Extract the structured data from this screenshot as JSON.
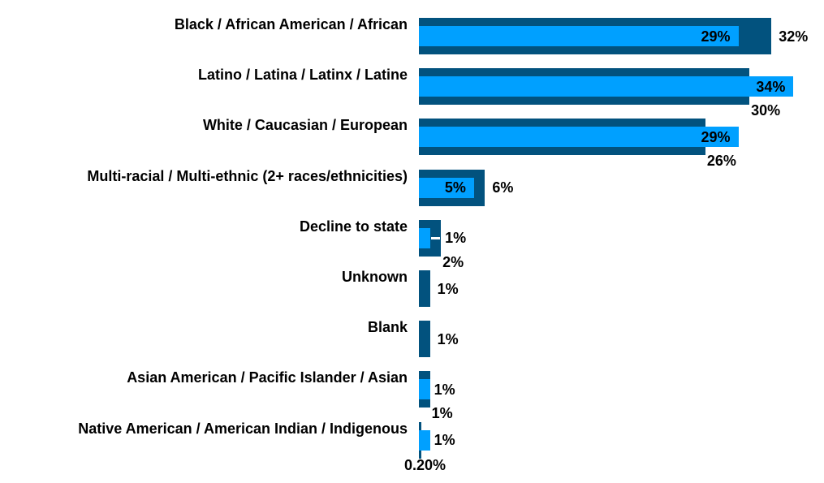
{
  "chart_data": {
    "type": "bar",
    "orientation": "horizontal",
    "title": "",
    "xlabel": "",
    "ylabel": "",
    "value_unit": "%",
    "xlim": [
      0,
      35
    ],
    "grid": false,
    "legend": false,
    "background_color": "#FFFFFF",
    "label_color": "#000000",
    "categories": [
      "Black / African American / African",
      "Latino / Latina / Latinx / Latine",
      "White / Caucasian / European",
      "Multi-racial / Multi-ethnic (2+ races/ethnicities)",
      "Decline to state",
      "Unknown",
      "Blank",
      "Asian American / Pacific Islander / Asian",
      "Native American / American Indian / Indigenous"
    ],
    "series": [
      {
        "name": "outer-dark-bars",
        "color": "#02527E",
        "values": [
          32,
          30,
          26,
          6,
          2,
          1,
          1,
          1,
          0.2
        ],
        "data_labels": [
          "32%",
          "30%",
          "26%",
          "6%",
          "2%",
          "1%",
          "1%",
          "1%",
          "0.20%"
        ],
        "label_placement": [
          "right",
          "below",
          "below",
          "right",
          "below",
          "right",
          "right",
          "below",
          "below-left"
        ]
      },
      {
        "name": "inner-light-bars",
        "color": "#00A0FF",
        "values": [
          29,
          34,
          29,
          5,
          1,
          null,
          null,
          1,
          1
        ],
        "data_labels": [
          "29%",
          "34%",
          "29%",
          "5%",
          "1%",
          null,
          null,
          "1%",
          "1%"
        ],
        "label_placement": [
          "inside",
          "inside",
          "inside",
          "inside",
          "leader",
          "none",
          "none",
          "outside",
          "outside"
        ]
      }
    ]
  }
}
